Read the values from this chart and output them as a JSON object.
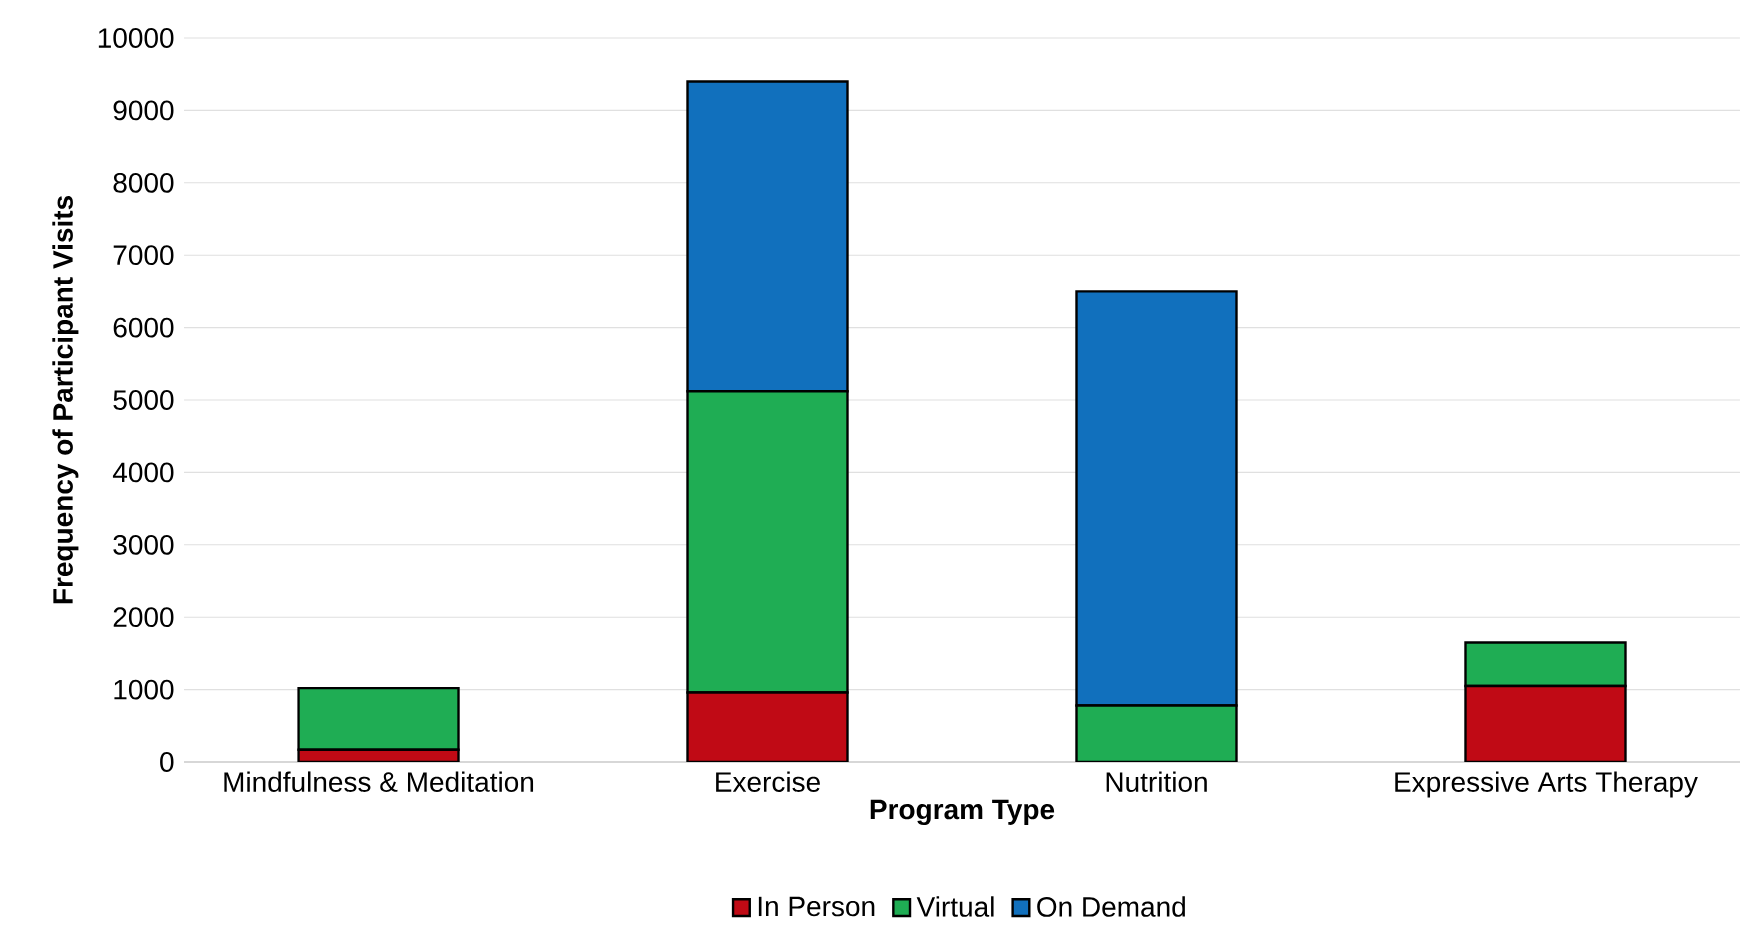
{
  "chart_data": {
    "type": "bar",
    "stacked": true,
    "xlabel": "Program Type",
    "ylabel": "Frequency of Participant Visits",
    "categories": [
      "Mindfulness & Meditation",
      "Exercise",
      "Nutrition",
      "Expressive Arts Therapy"
    ],
    "series": [
      {
        "name": "In Person",
        "color": "#c00a15",
        "values": [
          170,
          960,
          0,
          1050
        ]
      },
      {
        "name": "Virtual",
        "color": "#1fad54",
        "values": [
          850,
          4160,
          780,
          600
        ]
      },
      {
        "name": "On Demand",
        "color": "#1170bd",
        "values": [
          0,
          4280,
          5720,
          0
        ]
      }
    ],
    "ylim": [
      0,
      10000
    ],
    "yticks": [
      0,
      1000,
      2000,
      3000,
      4000,
      5000,
      6000,
      7000,
      8000,
      9000,
      10000
    ],
    "grid": "y",
    "legend": "bottom"
  }
}
